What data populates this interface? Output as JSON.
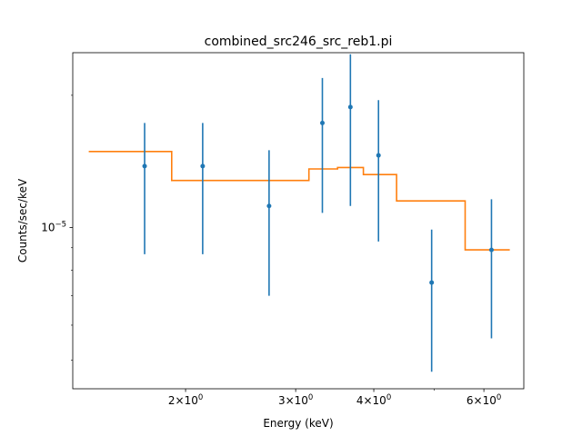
{
  "chart_data": {
    "type": "scatter",
    "title": "combined_src246_src_reb1.pi",
    "xlabel": "Energy (keV)",
    "ylabel": "Counts/sec/keV",
    "x_scale": "log",
    "y_scale": "log",
    "xlim": [
      1.32,
      6.95
    ],
    "ylim": [
      4.3e-06,
      2.5e-05
    ],
    "x_ticks": [
      {
        "value": 2,
        "base": "2×10",
        "exp": "0"
      },
      {
        "value": 3,
        "base": "3×10",
        "exp": "0"
      },
      {
        "value": 4,
        "base": "4×10",
        "exp": "0"
      },
      {
        "value": 6,
        "base": "6×10",
        "exp": "0"
      }
    ],
    "y_ticks": [
      {
        "value": 1e-05,
        "base": "10",
        "exp": "−5"
      }
    ],
    "series": [
      {
        "kind": "errorbar",
        "color": "#1f77b4",
        "points": [
          {
            "x": 1.72,
            "y": 1.38e-05,
            "ylo": 8.7e-06,
            "yhi": 1.73e-05
          },
          {
            "x": 2.13,
            "y": 1.38e-05,
            "ylo": 8.7e-06,
            "yhi": 1.73e-05
          },
          {
            "x": 2.72,
            "y": 1.12e-05,
            "ylo": 7e-06,
            "yhi": 1.5e-05
          },
          {
            "x": 3.31,
            "y": 1.73e-05,
            "ylo": 1.08e-05,
            "yhi": 2.19e-05
          },
          {
            "x": 3.67,
            "y": 1.88e-05,
            "ylo": 1.12e-05,
            "yhi": 2.48e-05
          },
          {
            "x": 4.07,
            "y": 1.46e-05,
            "ylo": 9.3e-06,
            "yhi": 1.95e-05
          },
          {
            "x": 4.95,
            "y": 7.5e-06,
            "ylo": 4.7e-06,
            "yhi": 9.9e-06
          },
          {
            "x": 6.17,
            "y": 8.9e-06,
            "ylo": 5.6e-06,
            "yhi": 1.16e-05
          }
        ]
      },
      {
        "kind": "step",
        "color": "#ff7f0e",
        "bins": [
          {
            "x0": 1.4,
            "x1": 1.9,
            "y": 1.49e-05
          },
          {
            "x0": 1.9,
            "x1": 3.15,
            "y": 1.28e-05
          },
          {
            "x0": 3.15,
            "x1": 3.5,
            "y": 1.36e-05
          },
          {
            "x0": 3.5,
            "x1": 3.85,
            "y": 1.37e-05
          },
          {
            "x0": 3.85,
            "x1": 4.35,
            "y": 1.32e-05
          },
          {
            "x0": 4.35,
            "x1": 5.6,
            "y": 1.15e-05
          },
          {
            "x0": 5.6,
            "x1": 6.6,
            "y": 8.9e-06
          }
        ]
      }
    ]
  }
}
